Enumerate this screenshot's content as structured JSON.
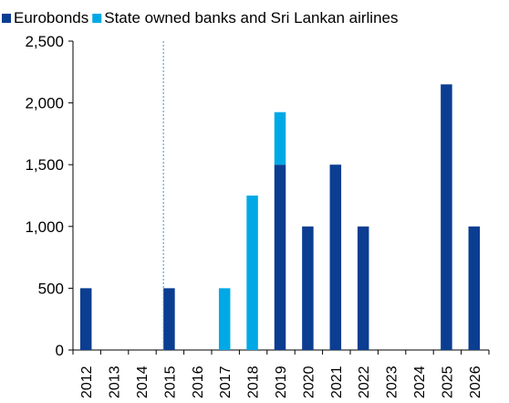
{
  "chart_data": {
    "type": "bar",
    "stacked": true,
    "categories": [
      "2012",
      "2013",
      "2014",
      "2015",
      "2016",
      "2017",
      "2018",
      "2019",
      "2020",
      "2021",
      "2022",
      "2023",
      "2024",
      "2025",
      "2026"
    ],
    "series": [
      {
        "name": "Eurobonds",
        "color": "#0B3D91",
        "values": [
          500,
          0,
          0,
          500,
          0,
          0,
          0,
          1500,
          1000,
          1500,
          1000,
          0,
          0,
          2150,
          1000
        ]
      },
      {
        "name": "State owned banks and Sri Lankan airlines",
        "color": "#00A9E6",
        "values": [
          0,
          0,
          0,
          0,
          0,
          500,
          1250,
          425,
          0,
          0,
          0,
          0,
          0,
          0,
          0
        ]
      }
    ],
    "ylim": [
      0,
      2500
    ],
    "yticks": [
      0,
      500,
      1000,
      1500,
      2000,
      2500
    ],
    "ytick_labels": [
      "0",
      "500",
      "1,000",
      "1,500",
      "2,000",
      "2,500"
    ],
    "reference_line": {
      "x": "2015",
      "style": "dashed",
      "color": "#3A8FD8"
    },
    "legend_position": "top",
    "grid": false,
    "title": "",
    "xlabel": "",
    "ylabel": ""
  }
}
